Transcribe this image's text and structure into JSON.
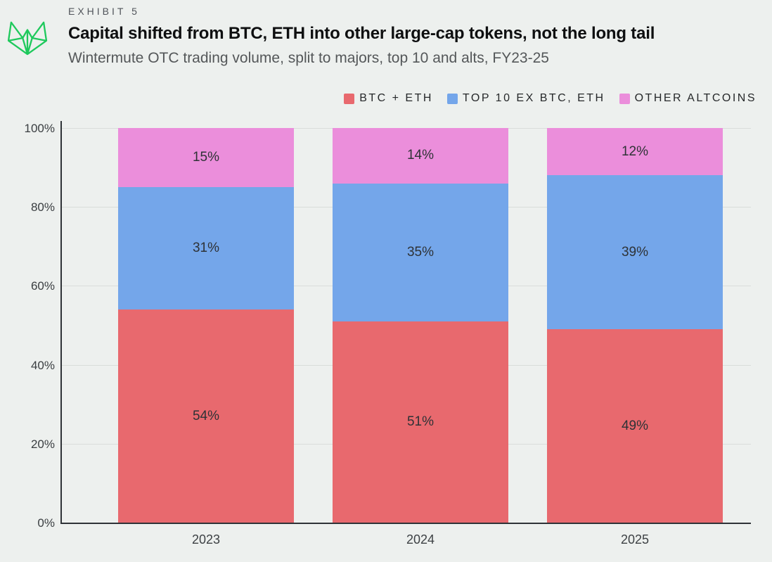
{
  "header": {
    "exhibit": "EXHIBIT 5",
    "title": "Capital shifted from BTC, ETH into other large-cap tokens, not the long tail",
    "subtitle": "Wintermute OTC trading volume, split to majors, top 10 and alts, FY23-25"
  },
  "logo": {
    "name": "wintermute-logo",
    "color": "#1ec95c"
  },
  "chart_data": {
    "type": "bar",
    "stacked": true,
    "title": "Capital shifted from BTC, ETH into other large-cap tokens, not the long tail",
    "subtitle": "Wintermute OTC trading volume, split to majors, top 10 and alts, FY23-25",
    "categories": [
      "2023",
      "2024",
      "2025"
    ],
    "series": [
      {
        "name": "BTC + ETH",
        "color": "#e8696e",
        "values": [
          54,
          51,
          49
        ]
      },
      {
        "name": "TOP 10 EX BTC, ETH",
        "color": "#74a6ea",
        "values": [
          31,
          35,
          39
        ]
      },
      {
        "name": "OTHER ALTCOINS",
        "color": "#eb8edb",
        "values": [
          15,
          14,
          12
        ]
      }
    ],
    "value_suffix": "%",
    "y_ticks": [
      "0%",
      "20%",
      "40%",
      "60%",
      "80%",
      "100%"
    ],
    "ylim": [
      0,
      100
    ],
    "grid": "horizontal",
    "legend_position": "top-right"
  },
  "colors": {
    "background": "#edf0ee",
    "axis": "#2f3337",
    "gridline": "#d9ddda",
    "bar_label": "#2e3236"
  }
}
